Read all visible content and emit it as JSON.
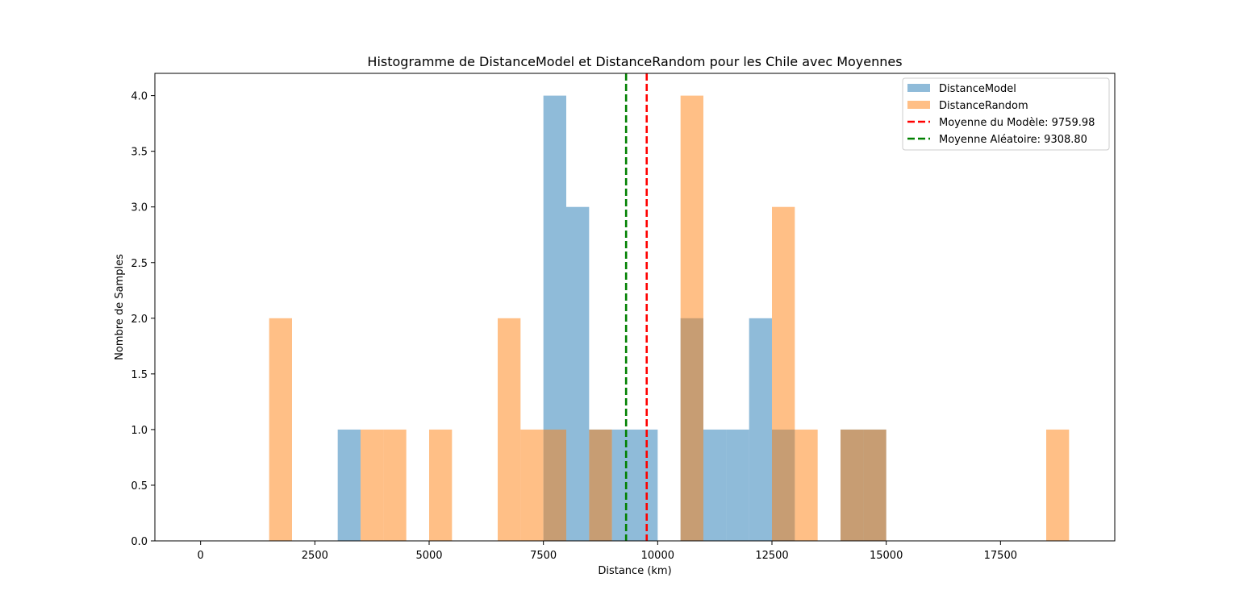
{
  "chart_data": {
    "type": "histogram",
    "title": "Histogramme de DistanceModel et DistanceRandom pour les Chile avec Moyennes",
    "xlabel": "Distance (km)",
    "ylabel": "Nombre de Samples",
    "xlim": [
      -1000,
      20000
    ],
    "ylim": [
      0,
      4.2
    ],
    "x_ticks": [
      0,
      2500,
      5000,
      7500,
      10000,
      12500,
      15000,
      17500
    ],
    "x_tick_labels": [
      "0",
      "2500",
      "5000",
      "7500",
      "10000",
      "12500",
      "15000",
      "17500"
    ],
    "y_ticks": [
      0,
      0.5,
      1,
      1.5,
      2,
      2.5,
      3,
      3.5,
      4
    ],
    "y_tick_labels": [
      "0.0",
      "0.5",
      "1.0",
      "1.5",
      "2.0",
      "2.5",
      "3.0",
      "3.5",
      "4.0"
    ],
    "grid": false,
    "legend_position": "upper right",
    "series": [
      {
        "name": "DistanceModel",
        "kind": "histogram",
        "color": "#1f77b4",
        "alpha": 0.5,
        "bins": [
          {
            "x0": 3000,
            "x1": 3500,
            "count": 1
          },
          {
            "x0": 7500,
            "x1": 8000,
            "count": 4
          },
          {
            "x0": 8000,
            "x1": 8500,
            "count": 3
          },
          {
            "x0": 8500,
            "x1": 9000,
            "count": 1
          },
          {
            "x0": 9000,
            "x1": 9500,
            "count": 1
          },
          {
            "x0": 9500,
            "x1": 10000,
            "count": 1
          },
          {
            "x0": 10500,
            "x1": 11000,
            "count": 2
          },
          {
            "x0": 11000,
            "x1": 11500,
            "count": 1
          },
          {
            "x0": 11500,
            "x1": 12000,
            "count": 1
          },
          {
            "x0": 12000,
            "x1": 12500,
            "count": 2
          },
          {
            "x0": 12500,
            "x1": 13000,
            "count": 1
          },
          {
            "x0": 14000,
            "x1": 14500,
            "count": 1
          },
          {
            "x0": 14500,
            "x1": 15000,
            "count": 1
          }
        ]
      },
      {
        "name": "DistanceRandom",
        "kind": "histogram",
        "color": "#ff7f0e",
        "alpha": 0.5,
        "bins": [
          {
            "x0": 1500,
            "x1": 2000,
            "count": 2
          },
          {
            "x0": 3500,
            "x1": 4000,
            "count": 1
          },
          {
            "x0": 4000,
            "x1": 4500,
            "count": 1
          },
          {
            "x0": 5000,
            "x1": 5500,
            "count": 1
          },
          {
            "x0": 6500,
            "x1": 7000,
            "count": 2
          },
          {
            "x0": 7000,
            "x1": 7500,
            "count": 1
          },
          {
            "x0": 7500,
            "x1": 8000,
            "count": 1
          },
          {
            "x0": 8500,
            "x1": 9000,
            "count": 1
          },
          {
            "x0": 10500,
            "x1": 11000,
            "count": 4
          },
          {
            "x0": 12500,
            "x1": 13000,
            "count": 3
          },
          {
            "x0": 13000,
            "x1": 13500,
            "count": 1
          },
          {
            "x0": 14000,
            "x1": 14500,
            "count": 1
          },
          {
            "x0": 14500,
            "x1": 15000,
            "count": 1
          },
          {
            "x0": 18500,
            "x1": 19000,
            "count": 1
          }
        ]
      },
      {
        "name": "Moyenne du Modèle: 9759.98",
        "kind": "vline",
        "x": 9759.98,
        "color": "#ff0000",
        "dash": "dashed"
      },
      {
        "name": "Moyenne Aléatoire: 9308.80",
        "kind": "vline",
        "x": 9308.8,
        "color": "#008000",
        "dash": "dashed"
      }
    ]
  }
}
